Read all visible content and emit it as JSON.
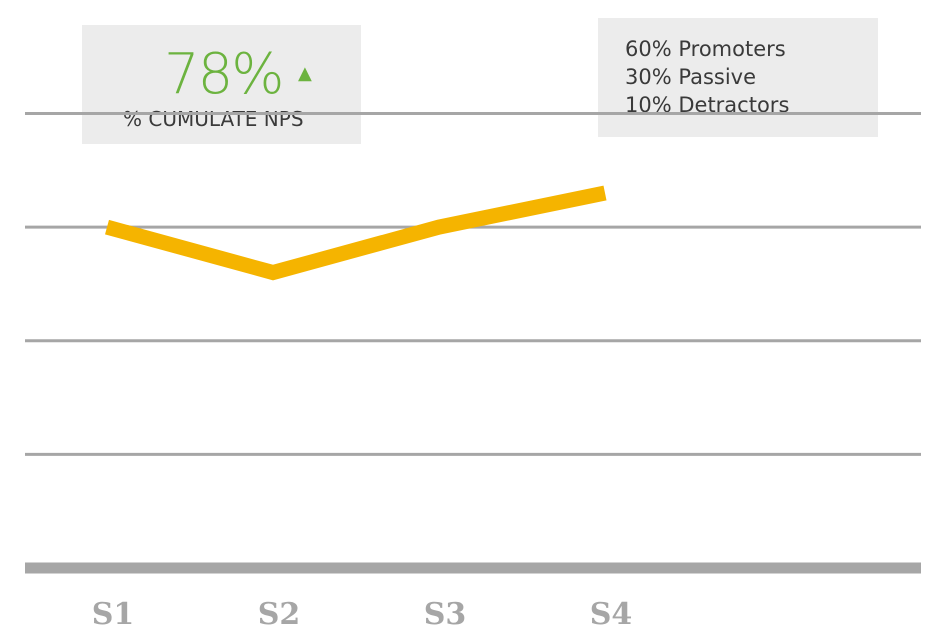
{
  "kpi": {
    "value": "78%",
    "trend_symbol": "▲",
    "label": "% CUMULATE NPS"
  },
  "breakdown": [
    "60% Promoters",
    "30% Passive",
    "10% Detractors"
  ],
  "colors": {
    "accent_green": "#6cb33f",
    "line": "#f5b400",
    "gridline": "#a6a6a6",
    "tick_label": "#a6a6a6",
    "card_bg": "#ececec",
    "text": "#3a3a3a"
  },
  "chart_data": {
    "type": "line",
    "categories": [
      "S1",
      "S2",
      "S3",
      "S4"
    ],
    "series": [
      {
        "values": [
          3.0,
          2.6,
          3.0,
          3.3
        ]
      }
    ],
    "ylim": [
      0,
      4.4
    ],
    "gridlines": [
      1.0,
      2.0,
      3.0,
      4.0
    ],
    "grid": true
  }
}
